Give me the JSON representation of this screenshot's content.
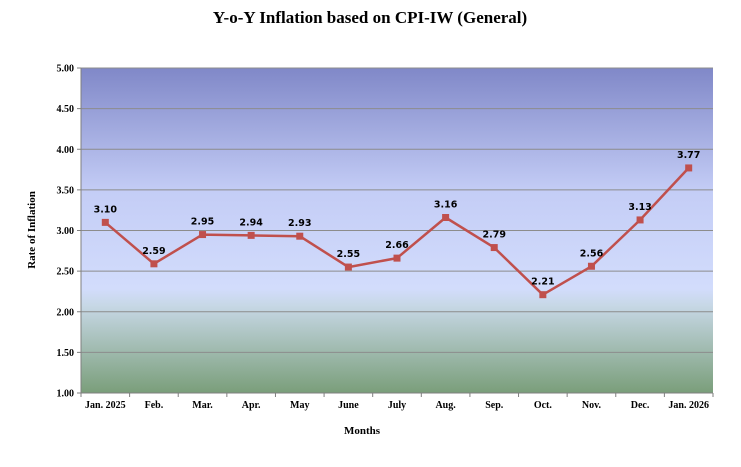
{
  "chart_data": {
    "type": "line",
    "title": "Y-o-Y Inflation based on CPI-IW (General)",
    "xlabel": "Months",
    "ylabel": "Rate of Inflation",
    "categories": [
      "Jan. 2025",
      "Feb.",
      "Mar.",
      "Apr.",
      "May",
      "June",
      "July",
      "Aug.",
      "Sep.",
      "Oct.",
      "Nov.",
      "Dec.",
      "Jan. 2026"
    ],
    "values": [
      3.1,
      2.59,
      2.95,
      2.94,
      2.93,
      2.55,
      2.66,
      3.16,
      2.79,
      2.21,
      2.56,
      3.13,
      3.77
    ],
    "data_labels": [
      "3.10",
      "2.59",
      "2.95",
      "2.94",
      "2.93",
      "2.55",
      "2.66",
      "3.16",
      "2.79",
      "2.21",
      "2.56",
      "3.13",
      "3.77"
    ],
    "ylim": [
      1.0,
      5.0
    ],
    "yticks": [
      "1.00",
      "1.50",
      "2.00",
      "2.50",
      "3.00",
      "3.50",
      "4.00",
      "4.50",
      "5.00"
    ],
    "grid": true,
    "legend": "none",
    "colors": {
      "line": "#c0504d",
      "marker": "#c0504d",
      "grid": "#8c8c8c",
      "plot_top": "#8088c8",
      "plot_mid": "#cfd8fb",
      "plot_bottom": "#7a9e7a"
    }
  }
}
